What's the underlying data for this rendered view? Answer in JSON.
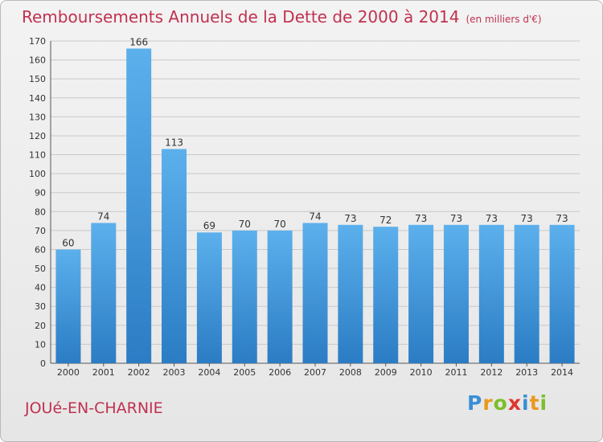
{
  "title": "Remboursements Annuels de la Dette de 2000 à 2014",
  "unit": "(en milliers d'€)",
  "commune": "JOUé-EN-CHARNIE",
  "logo": {
    "letters": [
      "P",
      "r",
      "o",
      "x",
      "i",
      "t",
      "i"
    ],
    "colors": [
      "#3a8fd6",
      "#e89a1e",
      "#7bbf2a",
      "#e0342e",
      "#3a8fd6",
      "#e89a1e",
      "#7bbf2a"
    ]
  },
  "colors": {
    "bar": "#4da3e3",
    "bar_dark": "#2b7cc4",
    "title": "#c0314f"
  },
  "chart_data": {
    "type": "bar",
    "categories": [
      "2000",
      "2001",
      "2002",
      "2003",
      "2004",
      "2005",
      "2006",
      "2007",
      "2008",
      "2009",
      "2010",
      "2011",
      "2012",
      "2013",
      "2014"
    ],
    "values": [
      60,
      74,
      166,
      113,
      69,
      70,
      70,
      74,
      73,
      72,
      73,
      73,
      73,
      73,
      73
    ],
    "ylim": [
      0,
      170
    ],
    "yticks": [
      0,
      10,
      20,
      30,
      40,
      50,
      60,
      70,
      80,
      90,
      100,
      110,
      120,
      130,
      140,
      150,
      160,
      170
    ],
    "grid": true
  }
}
